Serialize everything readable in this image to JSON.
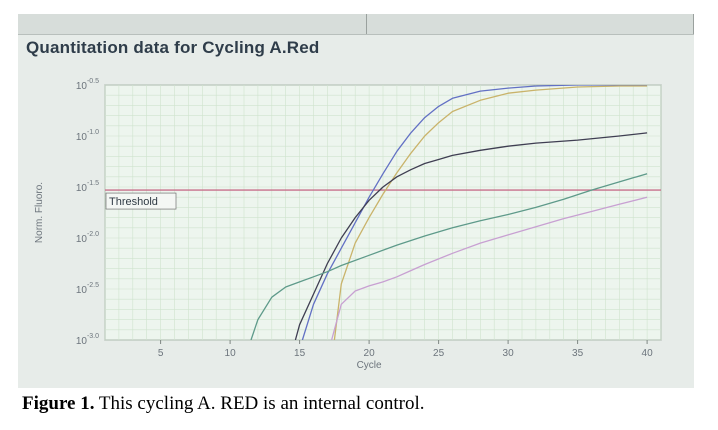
{
  "screen_title": "Quantitation data for Cycling A.Red",
  "caption": {
    "label": "Figure 1.",
    "text": " This cycling A. RED is an internal control."
  },
  "colors": {
    "plot_bg": "#edf5ee",
    "grid": "#cfe3cd",
    "threshold": "#c8708c",
    "tick_text": "#6c747c"
  },
  "chart_data": {
    "type": "line",
    "title": "Quantitation data for Cycling A.Red",
    "xlabel": "Cycle",
    "ylabel": "Norm. Fluoro.",
    "xlim": [
      1,
      41
    ],
    "ylim": [
      -3.0,
      -0.5
    ],
    "y_scale": "log10",
    "x_ticks": [
      5,
      10,
      15,
      20,
      25,
      30,
      35,
      40
    ],
    "x_tick_labels": [
      "5",
      "10",
      "15",
      "20",
      "25",
      "30",
      "35",
      "40"
    ],
    "y_ticks": [
      -0.5,
      -1.0,
      -1.5,
      -2.0,
      -2.5,
      -3.0
    ],
    "y_tick_labels": [
      {
        "base": "10",
        "exp": "-0.5"
      },
      {
        "base": "10",
        "exp": "-1.0"
      },
      {
        "base": "10",
        "exp": "-1.5"
      },
      {
        "base": "10",
        "exp": "-2.0"
      },
      {
        "base": "10",
        "exp": "-2.5"
      },
      {
        "base": "10",
        "exp": "-3.0"
      }
    ],
    "grid": true,
    "threshold": {
      "label": "Threshold",
      "value": -1.53
    },
    "series": [
      {
        "color": "#6270c4",
        "x": [
          15.2,
          16,
          17,
          18,
          19,
          20,
          21,
          22,
          23,
          24,
          25,
          26,
          28,
          30,
          32,
          35,
          38,
          40
        ],
        "y": [
          -3.0,
          -2.65,
          -2.35,
          -2.1,
          -1.85,
          -1.6,
          -1.37,
          -1.15,
          -0.97,
          -0.82,
          -0.71,
          -0.63,
          -0.56,
          -0.53,
          -0.51,
          -0.5,
          -0.5,
          -0.5
        ]
      },
      {
        "color": "#c9b36a",
        "x": [
          17.5,
          18,
          19,
          20,
          21,
          22,
          23,
          24,
          25,
          26,
          28,
          30,
          32,
          35,
          38,
          40
        ],
        "y": [
          -3.0,
          -2.45,
          -2.05,
          -1.8,
          -1.57,
          -1.36,
          -1.17,
          -1.0,
          -0.87,
          -0.76,
          -0.65,
          -0.58,
          -0.55,
          -0.52,
          -0.51,
          -0.51
        ]
      },
      {
        "color": "#3f3e52",
        "x": [
          14.7,
          15,
          16,
          17,
          18,
          19,
          20,
          21,
          22,
          23,
          24,
          25,
          26,
          28,
          30,
          32,
          35,
          38,
          40
        ],
        "y": [
          -3.0,
          -2.85,
          -2.55,
          -2.25,
          -2.0,
          -1.8,
          -1.63,
          -1.5,
          -1.4,
          -1.33,
          -1.27,
          -1.23,
          -1.19,
          -1.14,
          -1.1,
          -1.07,
          -1.04,
          -1.0,
          -0.97
        ]
      },
      {
        "color": "#5e9a8a",
        "x": [
          11.5,
          12,
          13,
          14,
          15,
          16,
          17,
          18,
          20,
          22,
          24,
          26,
          28,
          30,
          32,
          34,
          36,
          38,
          40
        ],
        "y": [
          -3.0,
          -2.8,
          -2.58,
          -2.48,
          -2.43,
          -2.38,
          -2.33,
          -2.27,
          -2.17,
          -2.07,
          -1.98,
          -1.9,
          -1.83,
          -1.77,
          -1.7,
          -1.62,
          -1.53,
          -1.45,
          -1.37
        ]
      },
      {
        "color": "#c8a0d2",
        "x": [
          17.3,
          18,
          19,
          20,
          21,
          22,
          23,
          24,
          26,
          28,
          30,
          32,
          34,
          36,
          38,
          40
        ],
        "y": [
          -3.0,
          -2.65,
          -2.52,
          -2.47,
          -2.43,
          -2.38,
          -2.32,
          -2.26,
          -2.15,
          -2.05,
          -1.97,
          -1.89,
          -1.81,
          -1.74,
          -1.67,
          -1.6
        ]
      }
    ]
  }
}
